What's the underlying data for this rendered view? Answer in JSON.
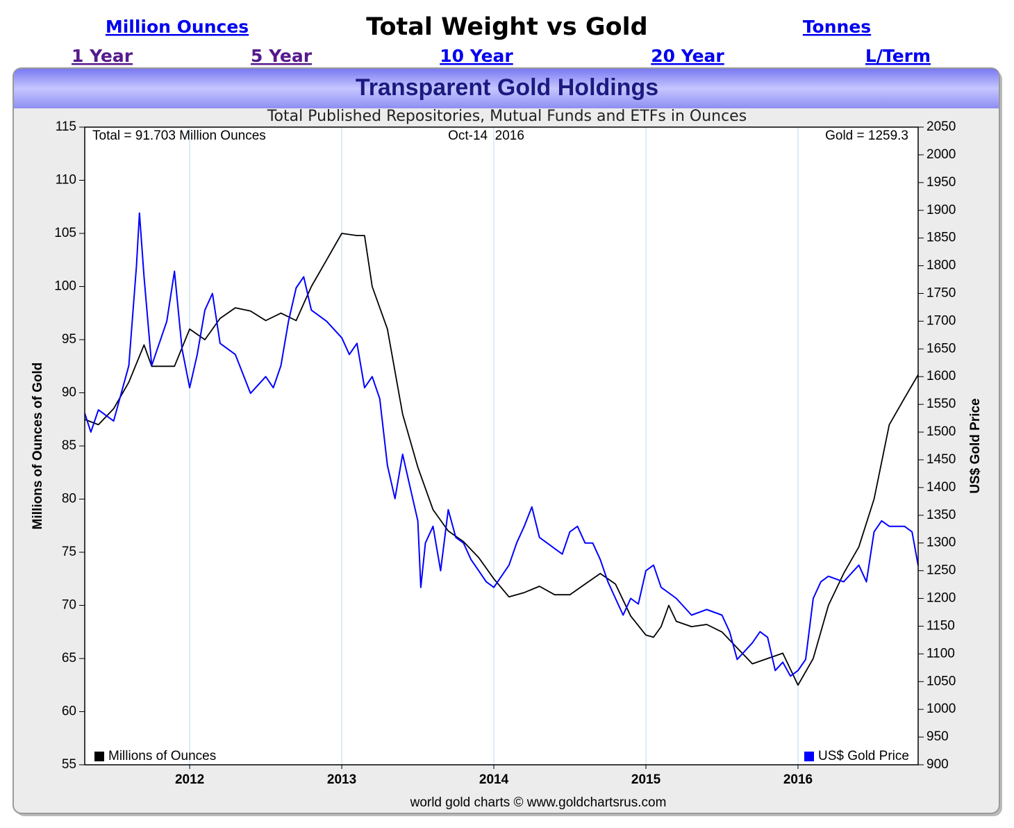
{
  "page": {
    "header_title": "Total Weight vs Gold",
    "unit_links": [
      "Million Ounces",
      "Tonnes"
    ],
    "range_links": [
      "1 Year",
      "5 Year",
      "10 Year",
      "20 Year",
      "L/Term"
    ]
  },
  "chart_data": {
    "type": "line",
    "title": "Transparent Gold Holdings",
    "subtitle": "Total Published Repositories, Mutual Funds and ETFs in Ounces",
    "annotations": [
      "Total = 91.703 Million Ounces",
      "Oct-14  2016",
      "Gold = 1259.3"
    ],
    "footer": "world gold charts © www.goldchartsrus.com",
    "ylabel": "Millions of Ounces of Gold",
    "y2label": "US$ Gold Price",
    "xlim": [
      2011.31,
      2016.79
    ],
    "xticks": [
      2012,
      2013,
      2014,
      2015,
      2016
    ],
    "ylim": [
      55,
      115
    ],
    "yticks": [
      55,
      60,
      65,
      70,
      75,
      80,
      85,
      90,
      95,
      100,
      105,
      110,
      115
    ],
    "y2lim": [
      900,
      2050
    ],
    "y2ticks": [
      900,
      950,
      1000,
      1050,
      1100,
      1150,
      1200,
      1250,
      1300,
      1350,
      1400,
      1450,
      1500,
      1550,
      1600,
      1650,
      1700,
      1750,
      1800,
      1850,
      1900,
      1950,
      2000,
      2050
    ],
    "grid": true,
    "series": [
      {
        "name": "Millions of Ounces",
        "color": "#000000",
        "axis": "y",
        "x": [
          2011.31,
          2011.4,
          2011.5,
          2011.6,
          2011.7,
          2011.75,
          2011.9,
          2012.0,
          2012.1,
          2012.2,
          2012.3,
          2012.4,
          2012.5,
          2012.6,
          2012.7,
          2012.8,
          2012.9,
          2013.0,
          2013.1,
          2013.15,
          2013.2,
          2013.3,
          2013.4,
          2013.5,
          2013.6,
          2013.7,
          2013.8,
          2013.9,
          2014.0,
          2014.1,
          2014.2,
          2014.3,
          2014.4,
          2014.5,
          2014.6,
          2014.7,
          2014.8,
          2014.9,
          2015.0,
          2015.05,
          2015.1,
          2015.15,
          2015.2,
          2015.3,
          2015.4,
          2015.5,
          2015.6,
          2015.7,
          2015.8,
          2015.9,
          2016.0,
          2016.1,
          2016.2,
          2016.3,
          2016.4,
          2016.5,
          2016.6,
          2016.7,
          2016.79
        ],
        "values": [
          87.5,
          87,
          88.5,
          91,
          94.5,
          92.5,
          92.5,
          96,
          95,
          97,
          98,
          97.7,
          96.8,
          97.5,
          96.8,
          100,
          102.5,
          105,
          104.8,
          104.8,
          100,
          96,
          88,
          83,
          79,
          77,
          76,
          74.5,
          72.5,
          70.8,
          71.2,
          71.8,
          71,
          71,
          72,
          73,
          72,
          69,
          67.2,
          67,
          68,
          70,
          68.5,
          68,
          68.2,
          67.5,
          66,
          64.5,
          65,
          65.5,
          62.5,
          65,
          70,
          73,
          75.5,
          80,
          87,
          89.5,
          91.7
        ]
      },
      {
        "name": "US$ Gold Price",
        "color": "#0000ff",
        "axis": "y2",
        "x": [
          2011.31,
          2011.35,
          2011.4,
          2011.5,
          2011.6,
          2011.65,
          2011.67,
          2011.7,
          2011.75,
          2011.85,
          2011.9,
          2011.95,
          2012.0,
          2012.05,
          2012.1,
          2012.15,
          2012.2,
          2012.3,
          2012.4,
          2012.5,
          2012.55,
          2012.6,
          2012.65,
          2012.7,
          2012.75,
          2012.8,
          2012.9,
          2013.0,
          2013.05,
          2013.1,
          2013.15,
          2013.2,
          2013.25,
          2013.3,
          2013.35,
          2013.4,
          2013.45,
          2013.5,
          2013.52,
          2013.55,
          2013.6,
          2013.65,
          2013.7,
          2013.75,
          2013.8,
          2013.85,
          2013.9,
          2013.95,
          2014.0,
          2014.1,
          2014.15,
          2014.2,
          2014.25,
          2014.3,
          2014.35,
          2014.4,
          2014.45,
          2014.5,
          2014.55,
          2014.6,
          2014.65,
          2014.7,
          2014.75,
          2014.8,
          2014.85,
          2014.9,
          2014.95,
          2015.0,
          2015.05,
          2015.1,
          2015.15,
          2015.2,
          2015.3,
          2015.4,
          2015.5,
          2015.55,
          2015.6,
          2015.7,
          2015.75,
          2015.8,
          2015.85,
          2015.9,
          2015.95,
          2016.0,
          2016.05,
          2016.1,
          2016.15,
          2016.2,
          2016.3,
          2016.4,
          2016.45,
          2016.5,
          2016.55,
          2016.6,
          2016.7,
          2016.75,
          2016.79
        ],
        "values": [
          1534,
          1500,
          1540,
          1520,
          1620,
          1800,
          1895,
          1780,
          1620,
          1700,
          1790,
          1650,
          1580,
          1640,
          1720,
          1750,
          1660,
          1640,
          1570,
          1600,
          1580,
          1620,
          1700,
          1760,
          1780,
          1720,
          1700,
          1670,
          1640,
          1660,
          1580,
          1600,
          1560,
          1440,
          1380,
          1460,
          1400,
          1340,
          1220,
          1300,
          1330,
          1250,
          1360,
          1310,
          1300,
          1270,
          1250,
          1230,
          1220,
          1260,
          1300,
          1330,
          1365,
          1310,
          1300,
          1290,
          1280,
          1320,
          1330,
          1300,
          1300,
          1270,
          1230,
          1200,
          1170,
          1200,
          1190,
          1250,
          1260,
          1220,
          1210,
          1200,
          1170,
          1180,
          1170,
          1140,
          1090,
          1120,
          1140,
          1130,
          1070,
          1085,
          1060,
          1070,
          1090,
          1200,
          1230,
          1240,
          1230,
          1260,
          1230,
          1320,
          1340,
          1330,
          1330,
          1320,
          1259.3
        ]
      }
    ]
  }
}
